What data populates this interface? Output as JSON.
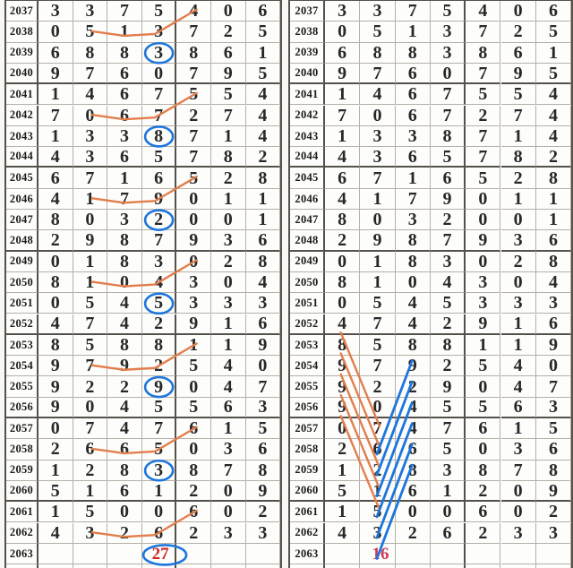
{
  "chart_data": {
    "type": "table",
    "title": "",
    "columns": 7,
    "row_labels": [
      "2037",
      "2038",
      "2039",
      "2040",
      "2041",
      "2042",
      "2043",
      "2044",
      "2045",
      "2046",
      "2047",
      "2048",
      "2049",
      "2050",
      "2051",
      "2052",
      "2053",
      "2054",
      "2055",
      "2056",
      "2057",
      "2058",
      "2059",
      "2060",
      "2061",
      "2062",
      "2063"
    ],
    "digits": [
      [
        3,
        3,
        7,
        5,
        4,
        0,
        6
      ],
      [
        0,
        5,
        1,
        3,
        7,
        2,
        5
      ],
      [
        6,
        8,
        8,
        3,
        8,
        6,
        1
      ],
      [
        9,
        7,
        6,
        0,
        7,
        9,
        5
      ],
      [
        1,
        4,
        6,
        7,
        5,
        5,
        4
      ],
      [
        7,
        0,
        6,
        7,
        2,
        7,
        4
      ],
      [
        1,
        3,
        3,
        8,
        7,
        1,
        4
      ],
      [
        4,
        3,
        6,
        5,
        7,
        8,
        2
      ],
      [
        6,
        7,
        1,
        6,
        5,
        2,
        8
      ],
      [
        4,
        1,
        7,
        9,
        0,
        1,
        1
      ],
      [
        8,
        0,
        3,
        2,
        0,
        0,
        1
      ],
      [
        2,
        9,
        8,
        7,
        9,
        3,
        6
      ],
      [
        0,
        1,
        8,
        3,
        0,
        2,
        8
      ],
      [
        8,
        1,
        0,
        4,
        3,
        0,
        4
      ],
      [
        0,
        5,
        4,
        5,
        3,
        3,
        3
      ],
      [
        4,
        7,
        4,
        2,
        9,
        1,
        6
      ],
      [
        8,
        5,
        8,
        8,
        1,
        1,
        9
      ],
      [
        9,
        7,
        9,
        2,
        5,
        4,
        0
      ],
      [
        9,
        2,
        2,
        9,
        0,
        4,
        7
      ],
      [
        9,
        0,
        4,
        5,
        5,
        6,
        3
      ],
      [
        0,
        7,
        4,
        7,
        6,
        1,
        5
      ],
      [
        2,
        6,
        6,
        5,
        0,
        3,
        6
      ],
      [
        1,
        2,
        8,
        3,
        8,
        7,
        8
      ],
      [
        5,
        1,
        6,
        1,
        2,
        0,
        9
      ],
      [
        1,
        5,
        0,
        0,
        6,
        0,
        2
      ],
      [
        4,
        3,
        2,
        6,
        2,
        3,
        3
      ],
      [
        "",
        "",
        "",
        "",
        "",
        "",
        ""
      ]
    ],
    "left_panel": {
      "circled_cells": [
        {
          "row": "2039",
          "col": 4
        },
        {
          "row": "2043",
          "col": 4
        },
        {
          "row": "2047",
          "col": 4
        },
        {
          "row": "2051",
          "col": 4
        },
        {
          "row": "2055",
          "col": 4
        },
        {
          "row": "2059",
          "col": 4
        }
      ],
      "connectors": [
        {
          "through_row": "2038",
          "cols": [
            2,
            3,
            4
          ],
          "up_to": {
            "row": "2037",
            "col": 5
          }
        },
        {
          "through_row": "2042",
          "cols": [
            2,
            3,
            4
          ],
          "up_to": {
            "row": "2041",
            "col": 5
          }
        },
        {
          "through_row": "2046",
          "cols": [
            2,
            3,
            4
          ],
          "up_to": {
            "row": "2045",
            "col": 5
          }
        },
        {
          "through_row": "2050",
          "cols": [
            2,
            3,
            4
          ],
          "up_to": {
            "row": "2049",
            "col": 5
          }
        },
        {
          "through_row": "2054",
          "cols": [
            2,
            3,
            4
          ],
          "up_to": {
            "row": "2053",
            "col": 5
          }
        },
        {
          "through_row": "2058",
          "cols": [
            2,
            3,
            4
          ],
          "up_to": {
            "row": "2057",
            "col": 5
          }
        },
        {
          "through_row": "2062",
          "cols": [
            2,
            3,
            4
          ],
          "up_to": {
            "row": "2061",
            "col": 5
          }
        }
      ],
      "sum": {
        "value": "27",
        "row": "2063",
        "col": 4,
        "circled": true
      }
    },
    "right_panel": {
      "orange_diagonals": [
        {
          "from": {
            "row": "2052",
            "col": 1
          },
          "to": {
            "row": "2057",
            "col": 2
          }
        },
        {
          "from": {
            "row": "2053",
            "col": 1
          },
          "to": {
            "row": "2058",
            "col": 2
          }
        },
        {
          "from": {
            "row": "2054",
            "col": 1
          },
          "to": {
            "row": "2059",
            "col": 2
          }
        },
        {
          "from": {
            "row": "2055",
            "col": 1
          },
          "to": {
            "row": "2060",
            "col": 2
          }
        },
        {
          "from": {
            "row": "2056",
            "col": 1
          },
          "to": {
            "row": "2061",
            "col": 2
          }
        }
      ],
      "blue_diagonals": [
        {
          "from": {
            "row": "2058",
            "col": 2
          },
          "to": {
            "row": "2054",
            "col": 3
          }
        },
        {
          "from": {
            "row": "2059",
            "col": 2
          },
          "to": {
            "row": "2055",
            "col": 3
          }
        },
        {
          "from": {
            "row": "2060",
            "col": 2
          },
          "to": {
            "row": "2056",
            "col": 3
          }
        },
        {
          "from": {
            "row": "2061",
            "col": 2
          },
          "to": {
            "row": "2057",
            "col": 3
          }
        },
        {
          "from": {
            "row": "2062",
            "col": 2
          },
          "to": {
            "row": "2058",
            "col": 3
          }
        },
        {
          "from": {
            "row": "2063",
            "col": 2
          },
          "to": {
            "row": "2059",
            "col": 3
          }
        }
      ],
      "sum": {
        "value": "16",
        "row": "2063",
        "col": 2,
        "circled": false
      }
    }
  },
  "colors": {
    "connector_orange": "#e27e4c",
    "annotation_blue": "#1d76dd",
    "grid_line": "#b6b0a6",
    "group_line": "#55514a",
    "digit": "#282828",
    "sum_red": "#d42422",
    "sum_pink": "#ce3a56",
    "cell_bg": "#fdfdfb",
    "page_bg": "#f9f8f5"
  }
}
